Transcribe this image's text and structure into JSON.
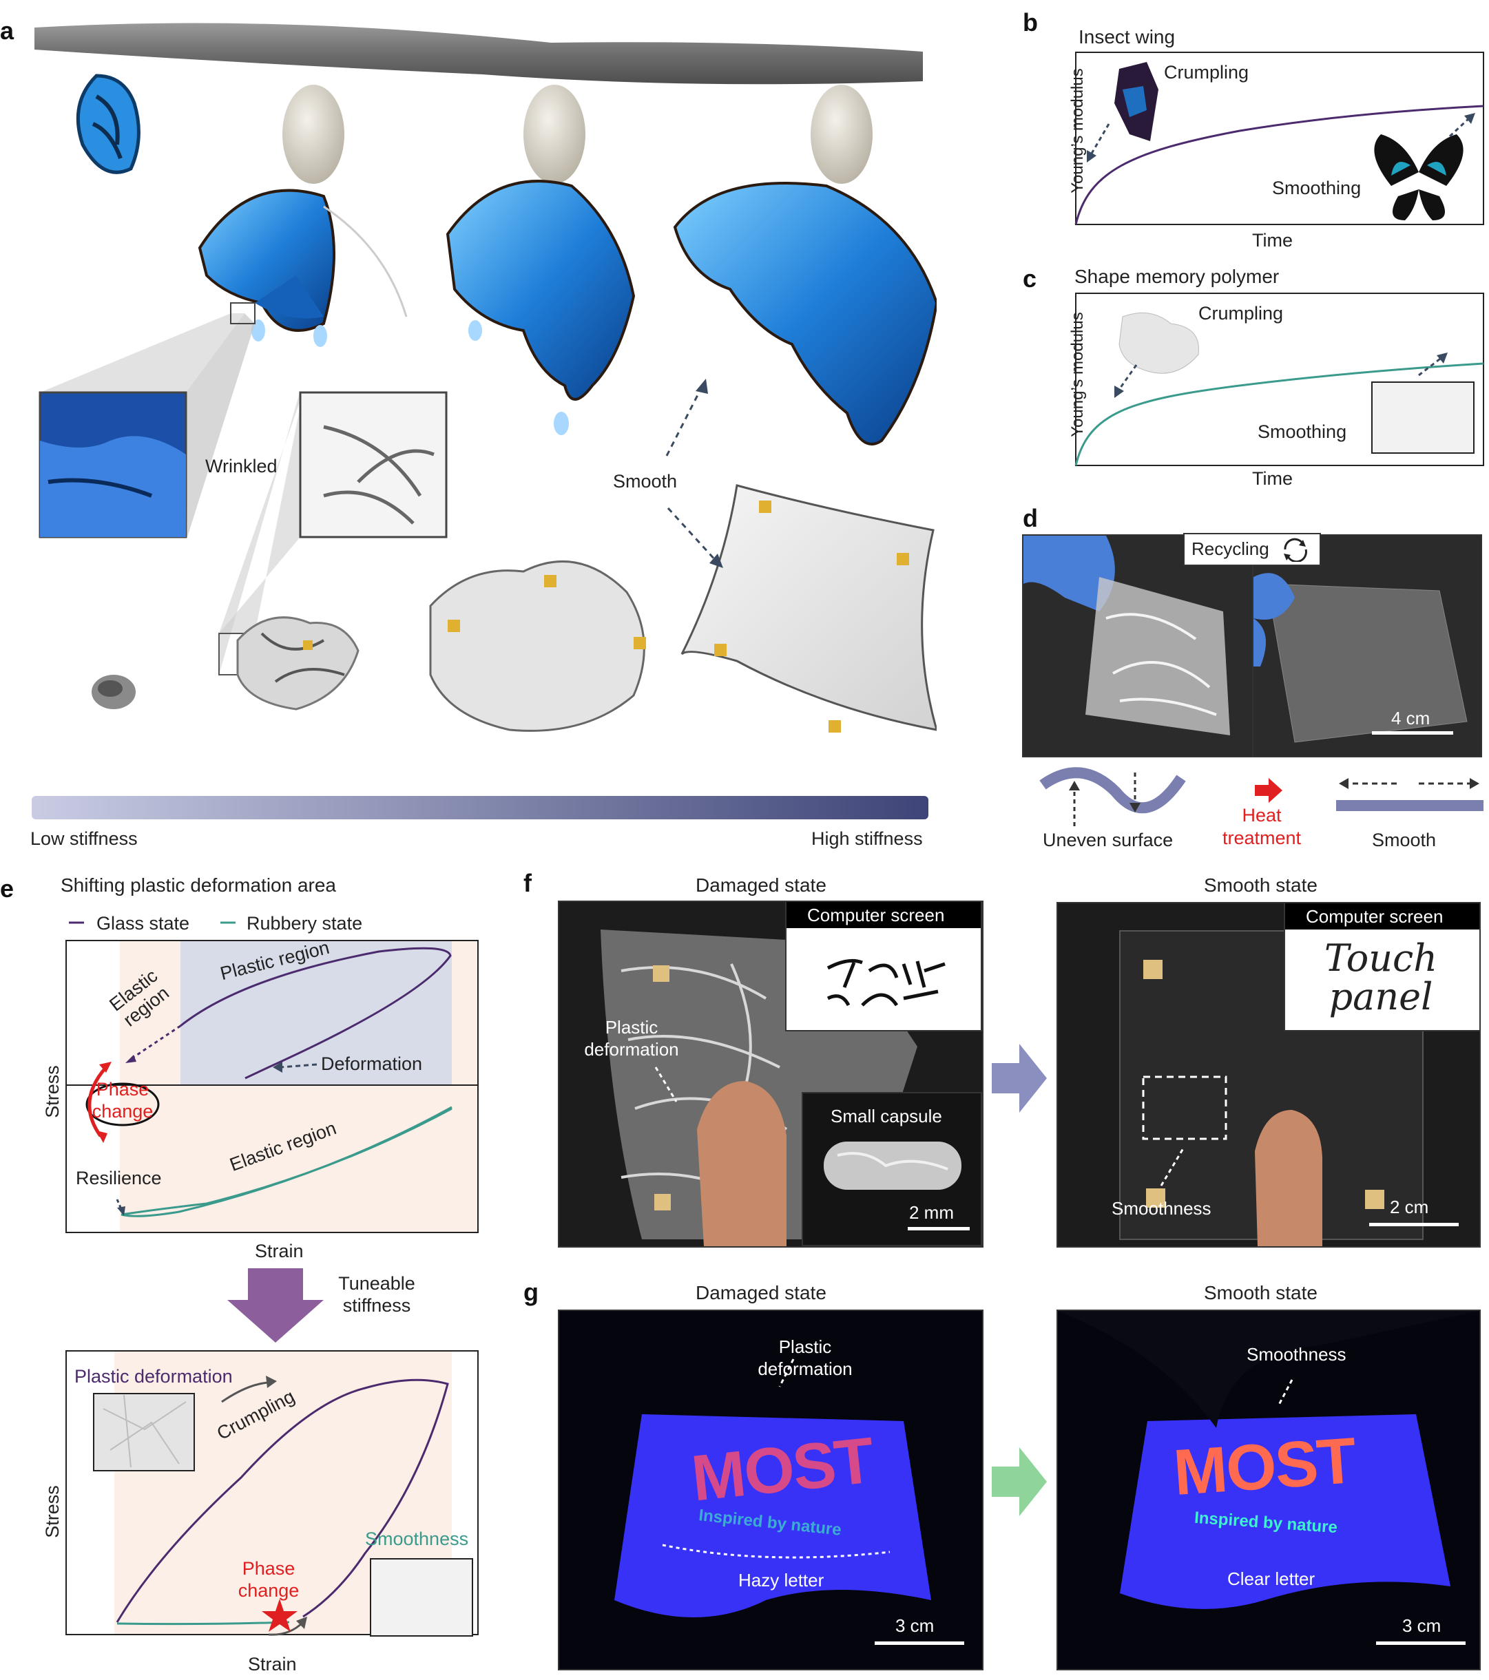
{
  "panels": {
    "a": {
      "label": "a",
      "wrinkled": "Wrinkled",
      "smooth": "Smooth",
      "low_stiffness": "Low stiffness",
      "high_stiffness": "High stiffness"
    },
    "b": {
      "label": "b",
      "title": "Insect wing",
      "ylabel": "Young’s modulus",
      "xlabel": "Time",
      "crumpling": "Crumpling",
      "smoothing": "Smoothing"
    },
    "c": {
      "label": "c",
      "title": "Shape memory polymer",
      "ylabel": "Young’s modulus",
      "xlabel": "Time",
      "crumpling": "Crumpling",
      "smoothing": "Smoothing"
    },
    "d": {
      "label": "d",
      "recycling": "Recycling",
      "scale": "4 cm",
      "uneven": "Uneven surface",
      "heat": "Heat treatment",
      "smooth": "Smooth"
    },
    "e": {
      "label": "e",
      "title": "Shifting plastic deformation area",
      "legend_glass": "Glass state",
      "legend_rubbery": "Rubbery state",
      "plastic_region": "Plastic region",
      "elastic_region_top": "Elastic region",
      "deformation": "Deformation",
      "phase_change": "Phase change",
      "resilience": "Resilience",
      "elastic_region_bottom": "Elastic region",
      "stress": "Stress",
      "strain": "Strain",
      "tuneable": "Tuneable stiffness",
      "plastic_deformation": "Plastic deformation",
      "crumpling": "Crumpling",
      "smoothness": "Smoothness",
      "phase_change2": "Phase change",
      "stress2": "Stress",
      "strain2": "Strain"
    },
    "f": {
      "label": "f",
      "damaged_state": "Damaged state",
      "smooth_state": "Smooth state",
      "computer_screen_1": "Computer screen",
      "computer_screen_2": "Computer screen",
      "plastic_deformation": "Plastic deformation",
      "small_capsule": "Small capsule",
      "scale_small": "2 mm",
      "smoothness": "Smoothness",
      "scale_large": "2 cm",
      "touch_panel": "Touch panel"
    },
    "g": {
      "label": "g",
      "damaged_state": "Damaged state",
      "smooth_state": "Smooth state",
      "plastic_deformation": "Plastic deformation",
      "smoothness": "Smoothness",
      "hazy_letter": "Hazy letter",
      "clear_letter": "Clear letter",
      "scale_1": "3 cm",
      "scale_2": "3 cm",
      "most": "MOST",
      "inspired": "Inspired by nature"
    }
  },
  "colors": {
    "glass": "#4b2a6e",
    "rubbery": "#3a9a8c",
    "red": "#e02020",
    "stiffness_low": "#c9cce3",
    "stiffness_high": "#3e4477",
    "arrow_f": "#8a8fc0",
    "arrow_g": "#8fd49a"
  }
}
